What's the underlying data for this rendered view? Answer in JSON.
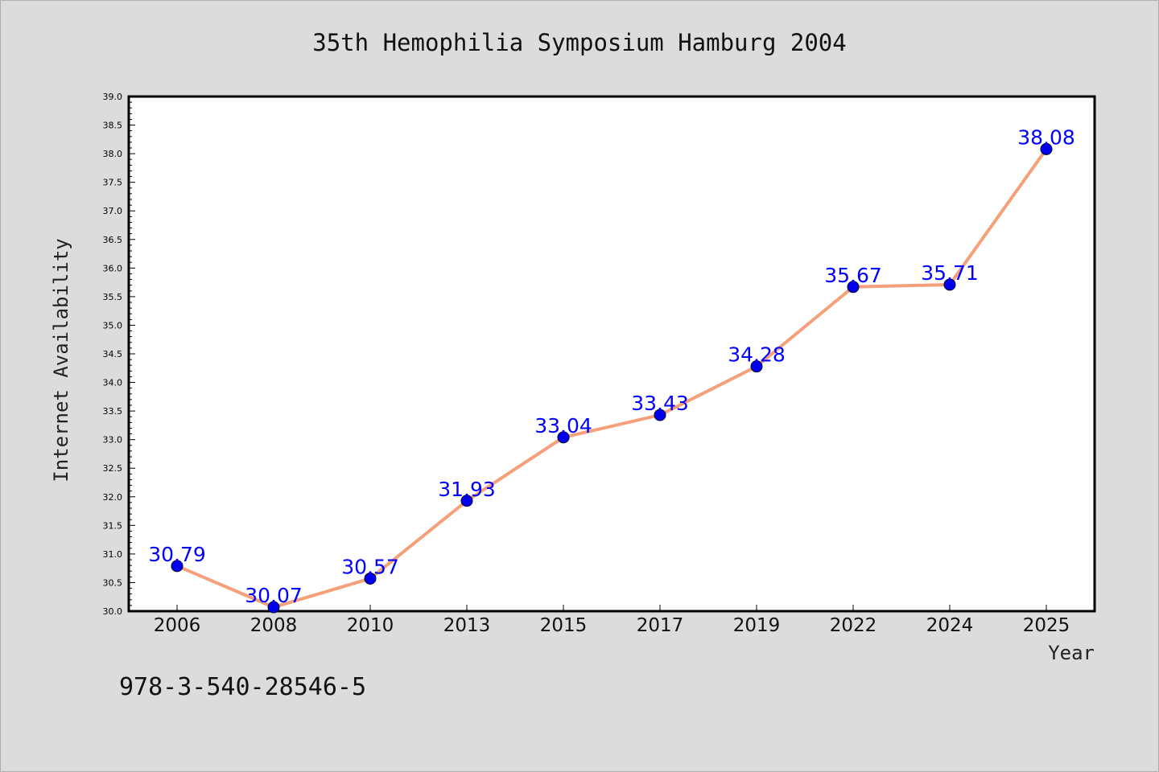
{
  "footnote": "978-3-540-28546-5",
  "chart_data": {
    "type": "line",
    "title": "35th Hemophilia Symposium Hamburg 2004",
    "xlabel": "Year",
    "ylabel": "Internet Availability",
    "categories": [
      "2006",
      "2008",
      "2010",
      "2013",
      "2015",
      "2017",
      "2019",
      "2022",
      "2024",
      "2025"
    ],
    "series": [
      {
        "values": [
          30.79,
          30.07,
          30.57,
          31.93,
          33.04,
          33.43,
          34.28,
          35.67,
          35.71,
          38.08
        ],
        "labels": [
          "30.79",
          "30.07",
          "30.57",
          "31.93",
          "33.04",
          "33.43",
          "34.28",
          "35.67",
          "35.71",
          "38.08"
        ],
        "line_color": "#f5a07a",
        "marker_color": "#0000ee"
      }
    ],
    "ylim": [
      30.0,
      39.0
    ],
    "yticks": [
      "30.0",
      "30.5",
      "31.0",
      "31.5",
      "32.0",
      "32.5",
      "33.0",
      "33.5",
      "34.0",
      "34.5",
      "35.0",
      "35.5",
      "36.0",
      "36.5",
      "37.0",
      "37.5",
      "38.0",
      "38.5",
      "39.0"
    ],
    "grid": false,
    "legend": "none",
    "colors": {
      "background": "#dcdcdc",
      "plot_background": "#ffffff",
      "axis": "#000000",
      "data_label": "#0000ff"
    }
  }
}
